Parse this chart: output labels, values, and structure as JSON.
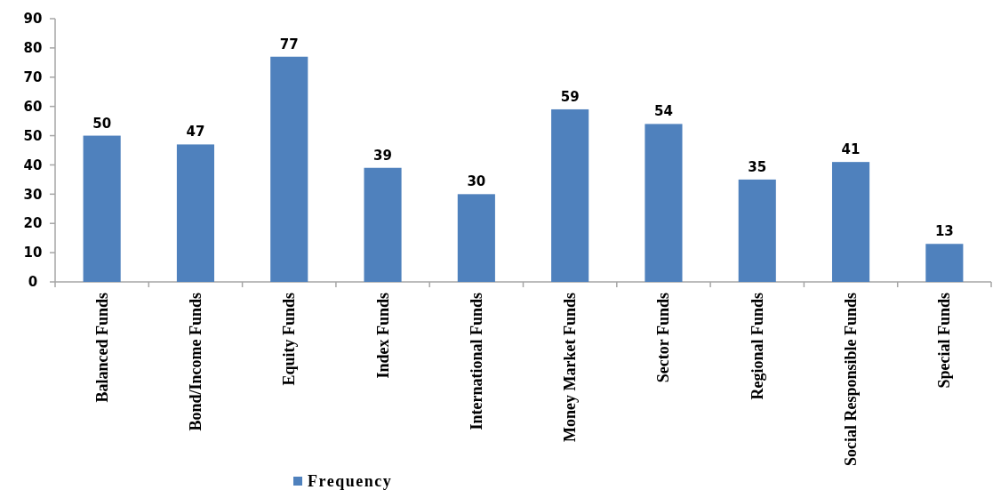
{
  "chart_data": {
    "type": "bar",
    "categories": [
      "Balanced Funds",
      "Bond/Income Funds",
      "Equity Funds",
      "Index Funds",
      "International Funds",
      "Money Market Funds",
      "Sector Funds",
      "Regional Funds",
      "Social Responsible Funds",
      "Special Funds"
    ],
    "series": [
      {
        "name": "Frequency",
        "color": "#4f81bd",
        "values": [
          50,
          47,
          77,
          39,
          30,
          59,
          54,
          35,
          41,
          13
        ]
      }
    ],
    "ylim": [
      0,
      90
    ],
    "yticks": [
      0,
      10,
      20,
      30,
      40,
      50,
      60,
      70,
      80,
      90
    ],
    "data_labels": true,
    "grid": false,
    "legend": "bottom"
  }
}
